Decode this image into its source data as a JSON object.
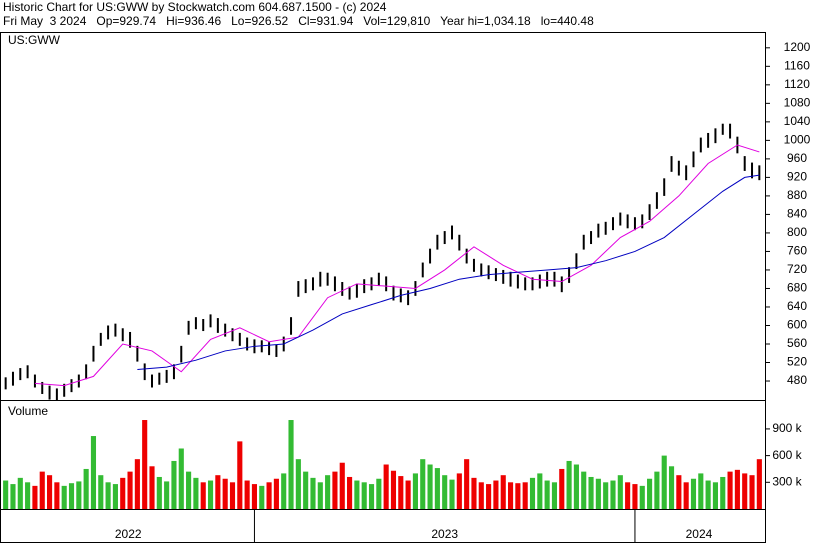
{
  "chart_data": {
    "type": "ohlc",
    "title": "Historic Chart for US:GWW by Stockwatch.com 604.687.1500 - (c) 2024",
    "subtitle": "Fri May  3 2024   Op=929.74   Hi=936.46   Lo=926.52   Cl=931.94   Vol=129,810   Year hi=1,034.18   lo=440.48",
    "symbol": "US:GWW",
    "color": "#000000",
    "low": [
      462,
      470,
      482,
      486,
      466,
      452,
      440,
      438,
      446,
      456,
      466,
      484,
      522,
      556,
      570,
      576,
      566,
      552,
      522,
      482,
      466,
      472,
      476,
      484,
      520,
      580,
      592,
      588,
      596,
      584,
      576,
      566,
      556,
      546,
      540,
      542,
      536,
      532,
      544,
      580,
      662,
      670,
      676,
      684,
      686,
      674,
      664,
      656,
      660,
      670,
      676,
      686,
      674,
      654,
      650,
      644,
      664,
      704,
      734,
      764,
      776,
      786,
      762,
      734,
      716,
      706,
      700,
      696,
      690,
      684,
      680,
      676,
      676,
      680,
      684,
      684,
      672,
      692,
      722,
      764,
      776,
      790,
      796,
      806,
      816,
      810,
      806,
      810,
      828,
      852,
      880,
      932,
      924,
      914,
      942,
      974,
      984,
      994,
      1012,
      1004,
      972,
      934,
      918,
      914
    ],
    "high": [
      488,
      500,
      508,
      514,
      494,
      478,
      470,
      464,
      474,
      484,
      494,
      516,
      556,
      584,
      600,
      604,
      594,
      586,
      556,
      518,
      494,
      498,
      504,
      516,
      556,
      610,
      618,
      614,
      624,
      616,
      604,
      594,
      584,
      574,
      570,
      568,
      564,
      558,
      576,
      618,
      696,
      700,
      704,
      716,
      714,
      706,
      694,
      684,
      690,
      700,
      704,
      714,
      706,
      686,
      680,
      676,
      696,
      736,
      766,
      796,
      804,
      816,
      796,
      766,
      744,
      734,
      730,
      724,
      720,
      716,
      710,
      704,
      704,
      710,
      716,
      716,
      706,
      726,
      756,
      796,
      804,
      820,
      824,
      834,
      844,
      840,
      834,
      840,
      862,
      888,
      918,
      966,
      956,
      946,
      976,
      1006,
      1016,
      1026,
      1036,
      1036,
      1008,
      966,
      952,
      946
    ],
    "xlim": [
      -0.5,
      103.5
    ],
    "ylim": [
      439,
      1232
    ],
    "yticks": [
      480,
      520,
      560,
      600,
      640,
      680,
      720,
      760,
      800,
      840,
      880,
      920,
      960,
      1000,
      {
        "value": 1040,
        "label": "1040"
      },
      {
        "value": 1080,
        "label": "1080"
      },
      {
        "value": 1120,
        "label": "1120"
      },
      {
        "value": 1160,
        "label": "1160"
      },
      {
        "value": 1200,
        "label": "1200"
      }
    ],
    "moving_averages": [
      {
        "color": "#e000e0",
        "x": [
          4,
          8,
          12,
          16,
          20,
          24,
          28,
          32,
          36,
          40,
          44,
          48,
          52,
          56,
          60,
          64,
          68,
          72,
          76,
          80,
          84,
          88,
          92,
          96,
          100,
          103
        ],
        "values": [
          475,
          470,
          490,
          560,
          545,
          500,
          570,
          595,
          565,
          575,
          660,
          690,
          685,
          680,
          720,
          770,
          730,
          700,
          695,
          730,
          790,
          825,
          880,
          950,
          990,
          975
        ]
      },
      {
        "color": "#0000c0",
        "x": [
          18,
          22,
          26,
          30,
          34,
          38,
          42,
          46,
          50,
          54,
          58,
          62,
          66,
          70,
          74,
          78,
          82,
          86,
          90,
          94,
          98,
          101,
          103
        ],
        "values": [
          505,
          510,
          525,
          545,
          555,
          560,
          590,
          625,
          645,
          665,
          680,
          700,
          710,
          715,
          720,
          725,
          740,
          760,
          790,
          840,
          890,
          920,
          925
        ]
      }
    ],
    "volume": {
      "title": "Volume",
      "up_color": "#33bb33",
      "down_color": "#ee0000",
      "values": [
        320000,
        280000,
        350000,
        300000,
        260000,
        420000,
        380000,
        300000,
        260000,
        290000,
        310000,
        450000,
        820000,
        380000,
        300000,
        280000,
        350000,
        420000,
        560000,
        1000000,
        480000,
        360000,
        310000,
        540000,
        680000,
        420000,
        350000,
        300000,
        320000,
        380000,
        340000,
        300000,
        760000,
        320000,
        280000,
        260000,
        300000,
        340000,
        400000,
        1000000,
        560000,
        420000,
        350000,
        300000,
        380000,
        420000,
        520000,
        360000,
        320000,
        300000,
        280000,
        340000,
        500000,
        430000,
        370000,
        320000,
        400000,
        560000,
        500000,
        460000,
        380000,
        330000,
        400000,
        560000,
        350000,
        300000,
        280000,
        320000,
        380000,
        300000,
        290000,
        300000,
        350000,
        400000,
        320000,
        300000,
        450000,
        540000,
        500000,
        420000,
        360000,
        340000,
        300000,
        320000,
        380000,
        300000,
        280000,
        260000,
        340000,
        420000,
        600000,
        480000,
        380000,
        300000,
        340000,
        400000,
        320000,
        300000,
        360000,
        420000,
        440000,
        400000,
        380000,
        560000
      ],
      "ylim": [
        0,
        1225000
      ],
      "yticks": [
        {
          "value": 300000,
          "label": "300 k"
        },
        {
          "value": 600000,
          "label": "600 k"
        },
        {
          "value": 900000,
          "label": "900 k"
        }
      ]
    },
    "year_labels": [
      "2022",
      "2023",
      "2024"
    ],
    "year_starts": [
      34,
      86
    ]
  }
}
